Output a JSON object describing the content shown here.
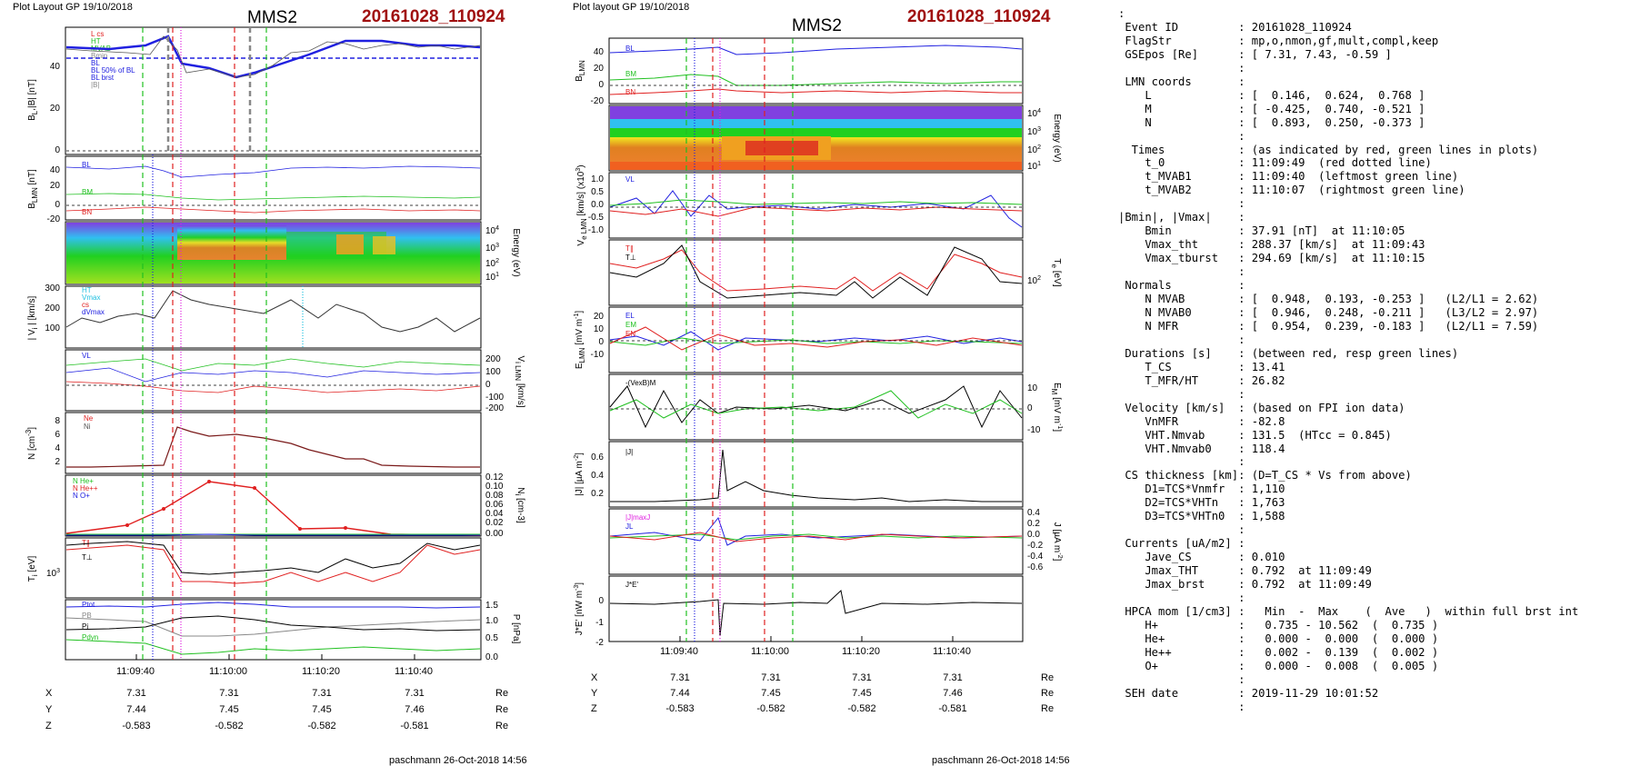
{
  "left": {
    "header": "Plot Layout GP 19/10/2018",
    "sat": "MMS2",
    "event": "20161028_110924",
    "footer": "paschmann 26-Oct-2018 14:56",
    "time_ticks": [
      "11:09:40",
      "11:10:00",
      "11:10:20",
      "11:10:40"
    ],
    "coords": {
      "X": [
        "7.31",
        "7.31",
        "7.31",
        "7.31"
      ],
      "Y": [
        "7.44",
        "7.45",
        "7.45",
        "7.46"
      ],
      "Z": [
        "-0.583",
        "-0.582",
        "-0.582",
        "-0.581"
      ],
      "unit": "Re"
    }
  },
  "middle": {
    "header": "Plot layout GP 19/10/2018",
    "sat": "MMS2",
    "event": "20161028_110924",
    "footer": "paschmann 26-Oct-2018 14:56",
    "time_ticks": [
      "11:09:40",
      "11:10:00",
      "11:10:20",
      "11:10:40"
    ],
    "coords": {
      "X": [
        "7.31",
        "7.31",
        "7.31",
        "7.31"
      ],
      "Y": [
        "7.44",
        "7.45",
        "7.45",
        "7.46"
      ],
      "Z": [
        "-0.583",
        "-0.582",
        "-0.582",
        "-0.581"
      ],
      "unit": "Re"
    }
  },
  "colors": {
    "red": "#e02020",
    "green": "#20c020",
    "blue": "#2020e0",
    "black": "#111111",
    "gray": "#888888",
    "magenta": "#e020e0",
    "event_title": "#a01010"
  },
  "info_text": [
    ":",
    " Event ID         : 20161028_110924",
    " FlagStr          : mp,o,nmon,gf,mult,compl,keep",
    " GSEpos [Re]      : [ 7.31, 7.43, -0.59 ]",
    "                  :",
    " LMN coords       :",
    "    L             : [  0.146,  0.624,  0.768 ]",
    "    M             : [ -0.425,  0.740, -0.521 ]",
    "    N             : [  0.893,  0.250, -0.373 ]",
    "                  :",
    "  Times           : (as indicated by red, green lines in plots)",
    "    t_0           : 11:09:49  (red dotted line)",
    "    t_MVAB1       : 11:09:40  (leftmost green line)",
    "    t_MVAB2       : 11:10:07  (rightmost green line)",
    "                  :",
    "|Bmin|, |Vmax|    :",
    "    Bmin          : 37.91 [nT]  at 11:10:05",
    "    Vmax_tht      : 288.37 [km/s]  at 11:09:43",
    "    Vmax_tburst   : 294.69 [km/s]  at 11:10:15",
    "                  :",
    " Normals          :",
    "    N MVAB        : [  0.948,  0.193, -0.253 ]   (L2/L1 = 2.62)",
    "    N MVAB0       : [  0.946,  0.248, -0.211 ]   (L3/L2 = 2.97)",
    "    N MFR         : [  0.954,  0.239, -0.183 ]   (L2/L1 = 7.59)",
    "                  :",
    " Durations [s]    : (between red, resp green lines)",
    "    T_CS          : 13.41",
    "    T_MFR/HT      : 26.82",
    "                  :",
    " Velocity [km/s]  : (based on FPI ion data)",
    "    VnMFR         : -82.8",
    "    VHT.Nmvab     : 131.5  (HTcc = 0.845)",
    "    VHT.Nmvab0    : 118.4",
    "                  :",
    " CS thickness [km]: (D=T_CS * Vs from above)",
    "    D1=TCS*Vnmfr  : 1,110",
    "    D2=TCS*VHTn   : 1,763",
    "    D3=TCS*VHTn0  : 1,588",
    "                  :",
    " Currents [uA/m2] :",
    "    Jave_CS       : 0.010",
    "    Jmax_THT      : 0.792  at 11:09:49",
    "    Jmax_brst     : 0.792  at 11:09:49",
    "                  :",
    " HPCA mom [1/cm3] :   Min  -  Max    (  Ave   )  within full brst int",
    "    H+            :   0.735 - 10.562  (  0.735 )",
    "    He+           :   0.000 -  0.000  (  0.000 )",
    "    He++          :   0.002 -  0.139  (  0.002 )",
    "    O+            :   0.000 -  0.008  (  0.005 )",
    "                  :",
    " SEH date         : 2019-11-29 10:01:52",
    "                  :"
  ],
  "chart_data": [
    {
      "type": "line",
      "panel": "left-B",
      "ylabel": "B_L, |B| [nT]",
      "yticks": [
        "0",
        "20",
        "40"
      ],
      "ylim": [
        0,
        60
      ],
      "legend": [
        "L cs",
        "HT",
        "MVAB",
        "Bmin",
        "BL",
        "BL 50% of BL",
        "BL brst",
        "|B|"
      ],
      "series": [
        {
          "name": "|B|",
          "color": "blue",
          "x": [
            0,
            0.15,
            0.25,
            0.3,
            0.35,
            0.45,
            0.55,
            0.65,
            0.75,
            0.85,
            1.0
          ],
          "y": [
            50,
            52,
            55,
            50,
            46,
            38,
            42,
            52,
            53,
            50,
            50
          ]
        }
      ]
    },
    {
      "type": "line",
      "panel": "left-BLMN",
      "ylabel": "B_LMN [nT]",
      "yticks": [
        "-20",
        "0",
        "20",
        "40"
      ],
      "ylim": [
        -25,
        55
      ],
      "legend": [
        "BL",
        "BM",
        "BN"
      ]
    },
    {
      "type": "heatmap",
      "panel": "left-spectrogram",
      "ylabel": "Energy (eV)",
      "yticks": [
        "10^4",
        "10^3",
        "10^2",
        "10^1"
      ]
    },
    {
      "type": "line",
      "panel": "left-Vi",
      "ylabel": "|Vi| [km/s]",
      "yticks": [
        "100",
        "200",
        "300"
      ],
      "legend": [
        "HT",
        "Vmax",
        "cs",
        "dVmax"
      ]
    },
    {
      "type": "line",
      "panel": "left-ViLMN",
      "ylabel": "Vi LMN [km/s]",
      "yticks": [
        "200",
        "100",
        "0",
        "-100",
        "-200"
      ],
      "legend": [
        "VL"
      ]
    },
    {
      "type": "line",
      "panel": "left-N",
      "ylabel": "N [cm^-3]",
      "yticks": [
        "2",
        "4",
        "6",
        "8"
      ],
      "legend": [
        "Ne",
        "Ni"
      ]
    },
    {
      "type": "line",
      "panel": "left-Ni",
      "ylabel": "Ni [cm^-3]",
      "yticks": [
        "0.12",
        "0.10",
        "0.08",
        "0.06",
        "0.04",
        "0.02",
        "0.00"
      ],
      "legend": [
        "N He+",
        "N He++",
        "N O+"
      ],
      "series": [
        {
          "name": "N He++",
          "color": "red",
          "x": [
            0.0,
            0.3,
            0.55,
            0.7,
            0.85,
            1.0
          ],
          "y": [
            0.005,
            0.05,
            0.12,
            0.1,
            0.01,
            0.01
          ]
        }
      ]
    },
    {
      "type": "line",
      "panel": "left-Ti",
      "ylabel": "Ti [eV]",
      "yticks": [
        "10^3"
      ],
      "legend": [
        "T∥",
        "T⊥"
      ]
    },
    {
      "type": "line",
      "panel": "left-P",
      "ylabel": "P [nPa]",
      "yticks": [
        "1.5",
        "1.0",
        "0.5",
        "0.0"
      ],
      "legend": [
        "Ptot",
        "PB",
        "Pi",
        "Pdyn"
      ]
    },
    {
      "type": "line",
      "panel": "mid-BLMN",
      "ylabel": "B_LMN",
      "yticks": [
        "40",
        "20",
        "0",
        "-20"
      ],
      "legend": [
        "BL",
        "BM",
        "BN"
      ]
    },
    {
      "type": "heatmap",
      "panel": "mid-spectrogram",
      "ylabel": "Energy (eV)",
      "yticks": [
        "10^4",
        "10^3",
        "10^2",
        "10^1"
      ]
    },
    {
      "type": "line",
      "panel": "mid-Ve",
      "ylabel": "Ve LMN [km/s]",
      "yticks": [
        "1.0",
        "0.5",
        "0.0",
        "-0.5",
        "-1.0"
      ],
      "legend": [
        "VL"
      ]
    },
    {
      "type": "line",
      "panel": "mid-Te",
      "ylabel": "Te [eV]",
      "yticks": [
        "10^2"
      ],
      "legend": [
        "T∥",
        "T⊥"
      ]
    },
    {
      "type": "line",
      "panel": "mid-E",
      "ylabel": "E_LMN [mV m^-1]",
      "yticks": [
        "20",
        "10",
        "0",
        "-10"
      ],
      "legend": [
        "EL",
        "EM",
        "EN"
      ]
    },
    {
      "type": "line",
      "panel": "mid-EM",
      "ylabel": "E_M [mV m^-1]",
      "yticks": [
        "10",
        "0",
        "-10"
      ],
      "legend": [
        "-(VexB)M"
      ]
    },
    {
      "type": "line",
      "panel": "mid-J",
      "ylabel": "|J| [µA m^-2]",
      "yticks": [
        "0.6",
        "0.4",
        "0.2"
      ],
      "legend": [
        "|J|"
      ]
    },
    {
      "type": "line",
      "panel": "mid-JLMN",
      "ylabel": "J [µA m^-2]",
      "yticks": [
        "0.4",
        "0.2",
        "0.0",
        "-0.2",
        "-0.4",
        "-0.6"
      ],
      "legend": [
        "|J|maxJ",
        "JL"
      ]
    },
    {
      "type": "line",
      "panel": "mid-JE",
      "ylabel": "J*E' [nW m^-3]",
      "yticks": [
        "0",
        "-1",
        "-2"
      ],
      "legend": [
        "J*E'"
      ]
    }
  ]
}
